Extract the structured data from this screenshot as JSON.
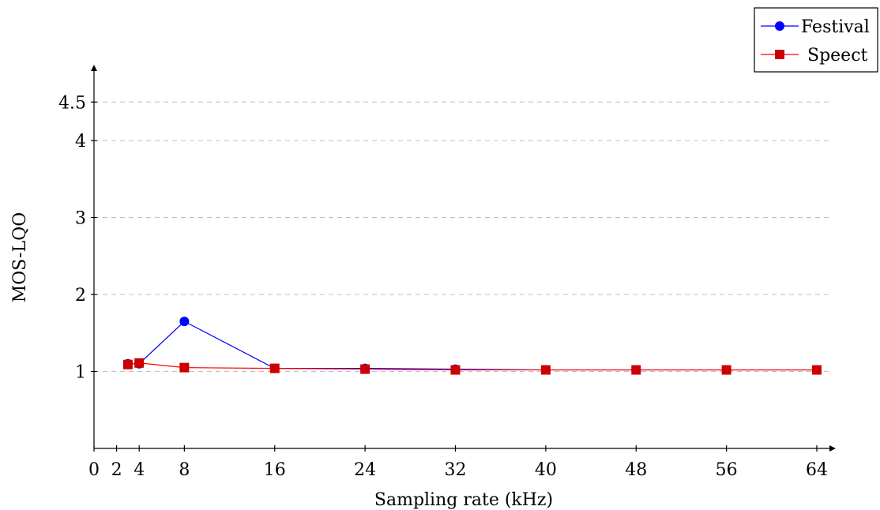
{
  "chart_data": {
    "type": "line",
    "xlabel": "Sampling rate (kHz)",
    "ylabel": "MOS-LQO",
    "xlim": [
      0,
      64
    ],
    "ylim": [
      0,
      4.8
    ],
    "x_ticks": [
      0,
      2,
      4,
      8,
      16,
      24,
      32,
      40,
      48,
      56,
      64
    ],
    "y_ticks": [
      1,
      2,
      3,
      4,
      4.5
    ],
    "grid": "horizontal dashed at y ticks",
    "legend_position": "top-right",
    "series": [
      {
        "name": "Festival",
        "color": "#0000ff",
        "marker": "circle",
        "x": [
          3,
          4,
          8,
          16,
          24,
          32,
          40,
          48,
          56,
          64
        ],
        "y": [
          1.1,
          1.1,
          1.65,
          1.04,
          1.04,
          1.03,
          1.02,
          1.02,
          1.02,
          1.02
        ]
      },
      {
        "name": "Speect",
        "color": "#ff0000",
        "marker": "square",
        "x": [
          3,
          4,
          8,
          16,
          24,
          32,
          40,
          48,
          56,
          64
        ],
        "y": [
          1.09,
          1.11,
          1.05,
          1.04,
          1.03,
          1.02,
          1.02,
          1.02,
          1.02,
          1.02
        ]
      }
    ]
  }
}
